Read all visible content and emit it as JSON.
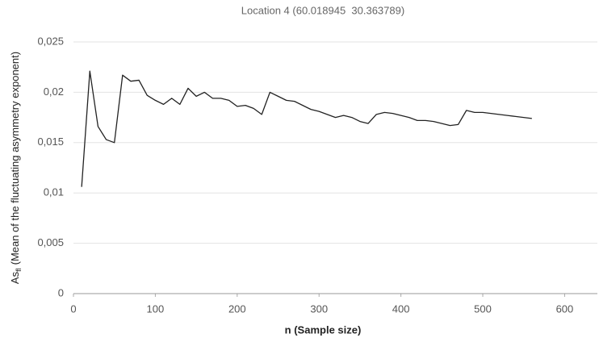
{
  "chart_data": {
    "type": "line",
    "title": "Location 4 (60.018945  30.363789)",
    "xlabel": "n (Sample size)",
    "ylabel": {
      "main": "As",
      "sub": "fl",
      "rest": "(Mean of the fluctuating asymmetry exponent)"
    },
    "x": [
      10,
      20,
      30,
      40,
      50,
      60,
      70,
      80,
      90,
      100,
      110,
      120,
      130,
      140,
      150,
      160,
      170,
      180,
      190,
      200,
      210,
      220,
      230,
      240,
      250,
      260,
      270,
      280,
      290,
      300,
      310,
      320,
      330,
      340,
      350,
      360,
      370,
      380,
      390,
      400,
      410,
      420,
      430,
      440,
      450,
      460,
      470,
      480,
      490,
      500,
      510,
      520,
      530,
      540,
      550,
      560
    ],
    "series": [
      {
        "name": "Location 4",
        "color": "#222222",
        "values": [
          0.0106,
          0.0221,
          0.0166,
          0.0153,
          0.015,
          0.0217,
          0.0211,
          0.0212,
          0.0197,
          0.0192,
          0.0188,
          0.0194,
          0.0188,
          0.0204,
          0.0196,
          0.02,
          0.0194,
          0.0194,
          0.0192,
          0.0186,
          0.0187,
          0.0184,
          0.0178,
          0.02,
          0.0196,
          0.0192,
          0.0191,
          0.0187,
          0.0183,
          0.0181,
          0.0178,
          0.0175,
          0.0177,
          0.0175,
          0.0171,
          0.0169,
          0.0178,
          0.018,
          0.0179,
          0.0177,
          0.0175,
          0.0172,
          0.0172,
          0.0171,
          0.0169,
          0.0167,
          0.0168,
          0.0182,
          0.018,
          0.018,
          0.0179,
          0.0178,
          0.0177,
          0.0176,
          0.0175,
          0.0174
        ]
      }
    ],
    "xlim": [
      0,
      640
    ],
    "xticks": [
      0,
      100,
      200,
      300,
      400,
      500,
      600
    ],
    "ylim": [
      0,
      0.025
    ],
    "yticks": [
      0,
      {
        "value": 0.005,
        "label": "0,005"
      },
      {
        "value": 0.01,
        "label": "0,01"
      },
      {
        "value": 0.015,
        "label": "0,015"
      },
      {
        "value": 0.02,
        "label": "0,02"
      },
      {
        "value": 0.025,
        "label": "0,025"
      }
    ],
    "grid": true
  }
}
